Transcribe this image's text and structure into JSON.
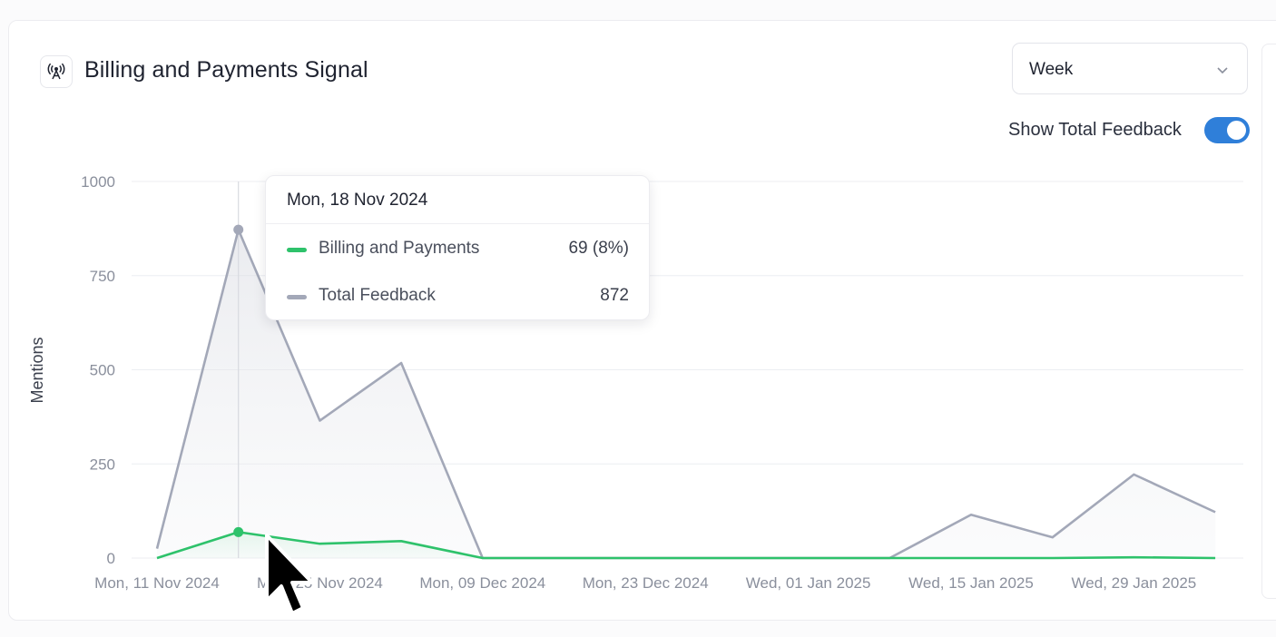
{
  "header": {
    "title": "Billing and Payments Signal",
    "icon": "broadcast-antenna-icon"
  },
  "controls": {
    "period_value": "Week",
    "toggle_label": "Show Total Feedback",
    "toggle_on": true,
    "toggle_color": "#2f7fd9"
  },
  "tooltip": {
    "date": "Mon, 18 Nov 2024",
    "rows": [
      {
        "label": "Billing and Payments",
        "value": "69 (8%)",
        "color": "#2ec26b"
      },
      {
        "label": "Total Feedback",
        "value": "872",
        "color": "#a3a8b8"
      }
    ]
  },
  "chart_data": {
    "type": "line",
    "ylabel": "Mentions",
    "xlabel": "",
    "ylim": [
      0,
      1000
    ],
    "y_ticks": [
      0,
      250,
      500,
      750,
      1000
    ],
    "grid": true,
    "x_tick_labels": [
      "Mon, 11 Nov 2024",
      "Mon, 25 Nov 2024",
      "Mon, 09 Dec 2024",
      "Mon, 23 Dec 2024",
      "Wed, 01 Jan 2025",
      "Wed, 15 Jan 2025",
      "Wed, 29 Jan 2025"
    ],
    "x": [
      "Mon, 11 Nov 2024",
      "Mon, 18 Nov 2024",
      "Mon, 25 Nov 2024",
      "Mon, 02 Dec 2024",
      "Mon, 09 Dec 2024",
      "Mon, 16 Dec 2024",
      "Mon, 23 Dec 2024",
      "Mon, 30 Dec 2024",
      "Wed, 01 Jan 2025",
      "Wed, 08 Jan 2025",
      "Wed, 15 Jan 2025",
      "Wed, 22 Jan 2025",
      "Wed, 29 Jan 2025",
      "Wed, 05 Feb 2025"
    ],
    "series": [
      {
        "name": "Total Feedback",
        "color": "#a3a8b8",
        "values": [
          25,
          872,
          365,
          518,
          0,
          0,
          0,
          0,
          0,
          0,
          115,
          55,
          222,
          122
        ]
      },
      {
        "name": "Billing and Payments",
        "color": "#2ec26b",
        "values": [
          0,
          69,
          38,
          45,
          0,
          0,
          0,
          0,
          0,
          0,
          0,
          0,
          2,
          0
        ]
      }
    ],
    "highlight_index": 1
  }
}
